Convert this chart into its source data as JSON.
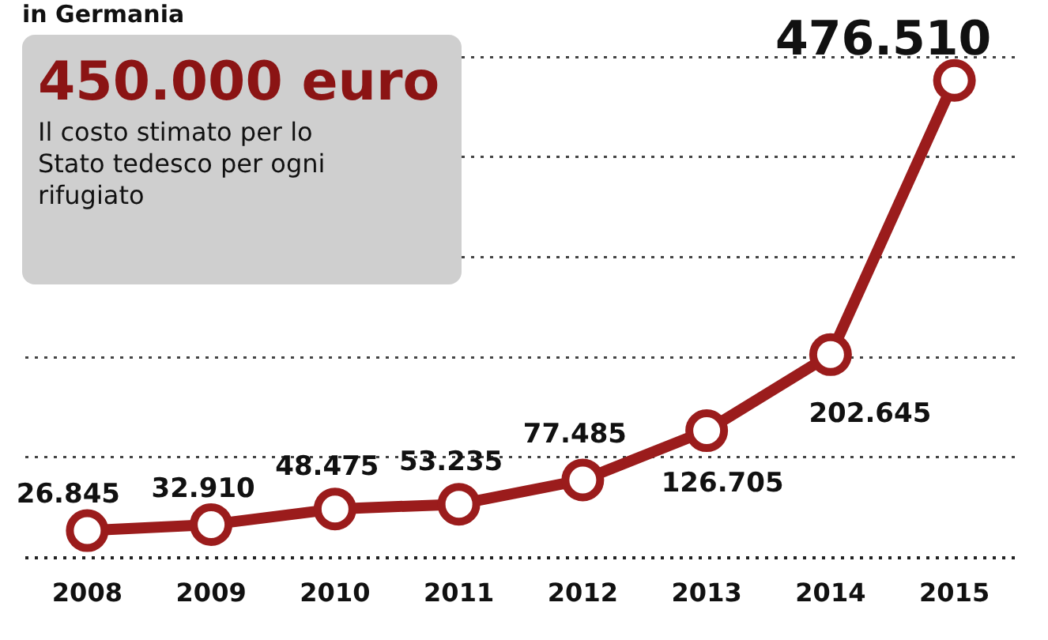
{
  "chart_data": {
    "type": "line",
    "title": "in Germania",
    "categories": [
      "2008",
      "2009",
      "2010",
      "2011",
      "2012",
      "2013",
      "2014",
      "2015"
    ],
    "series": [
      {
        "color": "#9b1c1c",
        "values": [
          26845,
          32910,
          48475,
          53235,
          77485,
          126705,
          202645,
          476510
        ],
        "value_labels": [
          "26.845",
          "32.910",
          "48.475",
          "53.235",
          "77.485",
          "126.705",
          "202.645",
          "476.510"
        ]
      }
    ],
    "ylim": [
      0,
      500000
    ],
    "yticks": [
      {
        "value": 0,
        "label": null
      },
      {
        "value": 100000,
        "label": null
      },
      {
        "value": 200000,
        "label": null
      },
      {
        "value": 300000,
        "label": null
      },
      {
        "value": 400000,
        "label": null
      },
      {
        "value": 500000,
        "label": null
      }
    ],
    "tick_labels": "x",
    "grid": "y",
    "legend": false,
    "marker": "circle",
    "line_style": "solid",
    "annotations": [
      "450.000 euro",
      "Il costo stimato per lo Stato tedesco per ogni rifugiato"
    ]
  }
}
